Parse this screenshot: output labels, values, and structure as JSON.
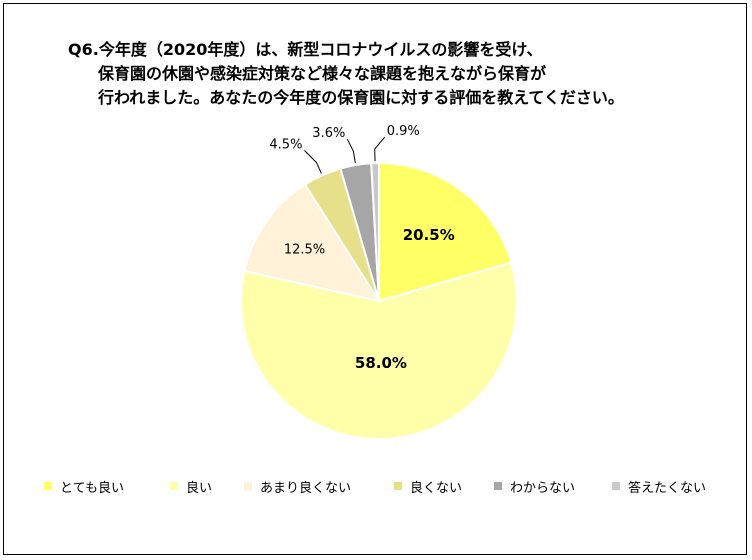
{
  "title_lines": [
    "Q6.今年度（2020年度）は、新型コロナウイルスの影響を受け、",
    "保育園の休園や感染症対策など様々な課題を抱えながら保育が",
    "行われました。あなたの今年度の保育園に対する評価を教えてください。"
  ],
  "chart_data": {
    "type": "pie",
    "title": "Q6.今年度（2020年度）は、新型コロナウイルスの影響を受け、保育園の休園や感染症対策など様々な課題を抱えながら保育が行われました。あなたの今年度の保育園に対する評価を教えてください。",
    "categories": [
      "とても良い",
      "良い",
      "あまり良くない",
      "良くない",
      "わからない",
      "答えたくない"
    ],
    "values": [
      20.5,
      58.0,
      12.5,
      4.5,
      3.6,
      0.9
    ],
    "labels": [
      "20.5%",
      "58.0%",
      "12.5%",
      "4.5%",
      "3.6%",
      "0.9%"
    ],
    "colors": [
      "#FFFF66",
      "#FFFFAA",
      "#FFF2D9",
      "#E6E08A",
      "#A6A6A6",
      "#C9C9C9"
    ],
    "start": "12 o'clock",
    "direction": "clockwise",
    "legend_position": "bottom"
  }
}
